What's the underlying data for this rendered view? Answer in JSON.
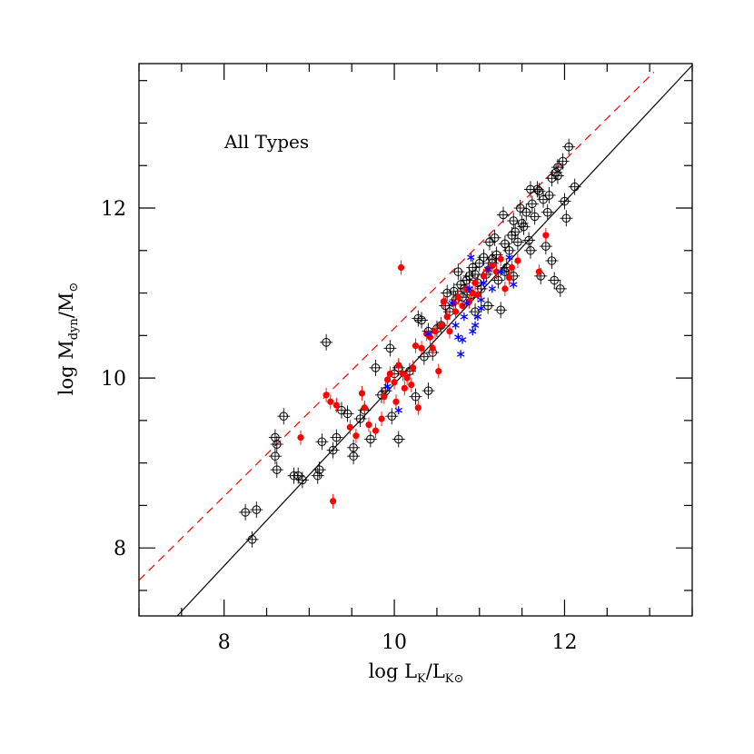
{
  "chart_data": {
    "type": "scatter",
    "title": "",
    "annotation": "All Types",
    "xlabel": {
      "main": "log L",
      "sub1": "K",
      "mid": "/L",
      "sub2": "K⊙"
    },
    "ylabel": {
      "main": "log M",
      "sub1": "dyn",
      "mid": "/M",
      "sub2": "⊙"
    },
    "xlim": [
      7.0,
      13.5
    ],
    "ylim": [
      7.2,
      13.7
    ],
    "x_ticks": [
      8,
      10,
      12
    ],
    "y_ticks": [
      8,
      10,
      12
    ],
    "grid": false,
    "colors": {
      "open": "#000000",
      "red": "#ff0000",
      "blue": "#0000ff",
      "fit_solid": "#000000",
      "fit_dashed": "#ff0000"
    },
    "lines": [
      {
        "name": "",
        "style": "solid",
        "color": "#000000",
        "x": [
          7.45,
          13.5
        ],
        "y": [
          7.2,
          13.68
        ]
      },
      {
        "name": "",
        "style": "dashed",
        "color": "#ff0000",
        "x": [
          7.0,
          13.05
        ],
        "y": [
          7.62,
          13.6
        ]
      }
    ],
    "series": [
      {
        "name": "",
        "marker": "open-circle-cross",
        "color": "#000000",
        "points": [
          [
            8.25,
            8.42
          ],
          [
            8.38,
            8.45
          ],
          [
            8.33,
            8.1
          ],
          [
            8.6,
            9.3
          ],
          [
            8.62,
            9.22
          ],
          [
            8.6,
            9.08
          ],
          [
            8.62,
            8.92
          ],
          [
            8.7,
            9.55
          ],
          [
            8.82,
            8.85
          ],
          [
            8.87,
            8.85
          ],
          [
            8.92,
            8.8
          ],
          [
            9.1,
            8.85
          ],
          [
            9.12,
            8.92
          ],
          [
            9.15,
            9.25
          ],
          [
            9.2,
            10.42
          ],
          [
            9.28,
            9.15
          ],
          [
            9.32,
            9.3
          ],
          [
            9.38,
            9.62
          ],
          [
            9.45,
            9.58
          ],
          [
            9.52,
            9.18
          ],
          [
            9.52,
            9.08
          ],
          [
            9.6,
            9.52
          ],
          [
            9.65,
            9.62
          ],
          [
            9.72,
            9.28
          ],
          [
            9.78,
            10.12
          ],
          [
            9.85,
            9.8
          ],
          [
            9.9,
            9.85
          ],
          [
            9.95,
            10.35
          ],
          [
            9.97,
            9.55
          ],
          [
            10.0,
            10.05
          ],
          [
            10.05,
            9.28
          ],
          [
            10.05,
            10.12
          ],
          [
            10.18,
            10.08
          ],
          [
            10.25,
            9.78
          ],
          [
            10.28,
            10.7
          ],
          [
            10.32,
            10.68
          ],
          [
            10.35,
            10.25
          ],
          [
            10.4,
            9.85
          ],
          [
            10.4,
            10.55
          ],
          [
            10.45,
            10.3
          ],
          [
            10.5,
            10.58
          ],
          [
            10.55,
            10.62
          ],
          [
            10.6,
            10.85
          ],
          [
            10.62,
            11.0
          ],
          [
            10.65,
            10.78
          ],
          [
            10.7,
            11.02
          ],
          [
            10.72,
            10.92
          ],
          [
            10.75,
            11.25
          ],
          [
            10.78,
            11.1
          ],
          [
            10.8,
            10.95
          ],
          [
            10.82,
            11.05
          ],
          [
            10.85,
            11.15
          ],
          [
            10.88,
            11.2
          ],
          [
            10.9,
            10.98
          ],
          [
            10.92,
            11.3
          ],
          [
            10.95,
            10.78
          ],
          [
            10.98,
            11.12
          ],
          [
            11.0,
            11.35
          ],
          [
            11.02,
            11.05
          ],
          [
            11.05,
            11.42
          ],
          [
            11.08,
            11.22
          ],
          [
            11.1,
            10.85
          ],
          [
            11.12,
            11.6
          ],
          [
            11.15,
            11.35
          ],
          [
            11.18,
            11.65
          ],
          [
            11.2,
            11.45
          ],
          [
            11.22,
            11.15
          ],
          [
            11.25,
            10.8
          ],
          [
            11.28,
            11.92
          ],
          [
            11.3,
            11.58
          ],
          [
            11.32,
            11.3
          ],
          [
            11.35,
            11.5
          ],
          [
            11.38,
            11.68
          ],
          [
            11.4,
            11.85
          ],
          [
            11.42,
            11.72
          ],
          [
            11.45,
            11.6
          ],
          [
            11.48,
            12.0
          ],
          [
            11.5,
            11.82
          ],
          [
            11.52,
            11.78
          ],
          [
            11.55,
            11.95
          ],
          [
            11.58,
            11.62
          ],
          [
            11.6,
            11.5
          ],
          [
            11.62,
            12.05
          ],
          [
            11.65,
            11.9
          ],
          [
            11.68,
            12.22
          ],
          [
            11.7,
            12.2
          ],
          [
            11.72,
            11.2
          ],
          [
            11.75,
            12.1
          ],
          [
            11.78,
            11.55
          ],
          [
            11.8,
            11.95
          ],
          [
            11.82,
            12.15
          ],
          [
            11.85,
            12.35
          ],
          [
            11.85,
            11.38
          ],
          [
            11.88,
            11.15
          ],
          [
            11.9,
            12.42
          ],
          [
            11.92,
            12.48
          ],
          [
            11.92,
            12.38
          ],
          [
            11.95,
            11.05
          ],
          [
            11.98,
            12.55
          ],
          [
            12.0,
            12.08
          ],
          [
            12.02,
            11.88
          ],
          [
            12.05,
            12.72
          ],
          [
            12.12,
            12.25
          ],
          [
            11.6,
            12.22
          ],
          [
            11.4,
            11.2
          ],
          [
            11.3,
            11.25
          ],
          [
            11.15,
            11.4
          ],
          [
            10.95,
            11.22
          ]
        ]
      },
      {
        "name": "",
        "marker": "filled-circle",
        "color": "#ff0000",
        "points": [
          [
            8.9,
            9.3
          ],
          [
            9.2,
            9.8
          ],
          [
            9.25,
            9.72
          ],
          [
            9.28,
            8.55
          ],
          [
            9.32,
            9.68
          ],
          [
            9.48,
            9.42
          ],
          [
            9.55,
            9.32
          ],
          [
            9.62,
            9.82
          ],
          [
            9.65,
            9.65
          ],
          [
            9.7,
            9.45
          ],
          [
            9.78,
            9.38
          ],
          [
            9.85,
            9.52
          ],
          [
            9.88,
            9.78
          ],
          [
            9.92,
            9.98
          ],
          [
            9.95,
            10.05
          ],
          [
            10.0,
            9.95
          ],
          [
            10.02,
            9.72
          ],
          [
            10.05,
            10.15
          ],
          [
            10.08,
            11.3
          ],
          [
            10.1,
            10.05
          ],
          [
            10.12,
            9.88
          ],
          [
            10.15,
            10.0
          ],
          [
            10.2,
            9.92
          ],
          [
            10.22,
            10.12
          ],
          [
            10.25,
            10.38
          ],
          [
            10.28,
            9.65
          ],
          [
            10.32,
            10.35
          ],
          [
            10.38,
            10.52
          ],
          [
            10.42,
            10.48
          ],
          [
            10.45,
            10.35
          ],
          [
            10.48,
            10.55
          ],
          [
            10.52,
            10.08
          ],
          [
            10.55,
            10.62
          ],
          [
            10.58,
            10.9
          ],
          [
            10.62,
            10.72
          ],
          [
            10.65,
            10.55
          ],
          [
            10.7,
            10.88
          ],
          [
            10.72,
            10.78
          ],
          [
            10.75,
            10.95
          ],
          [
            10.8,
            10.85
          ],
          [
            10.85,
            11.05
          ],
          [
            10.88,
            10.9
          ],
          [
            10.92,
            11.0
          ],
          [
            10.95,
            11.12
          ],
          [
            10.98,
            10.98
          ],
          [
            11.05,
            11.2
          ],
          [
            11.1,
            11.28
          ],
          [
            11.15,
            11.32
          ],
          [
            11.2,
            11.25
          ],
          [
            11.25,
            11.4
          ],
          [
            11.3,
            11.05
          ],
          [
            11.35,
            11.18
          ],
          [
            11.38,
            11.3
          ],
          [
            11.45,
            11.38
          ],
          [
            11.78,
            11.68
          ],
          [
            11.7,
            11.25
          ]
        ]
      },
      {
        "name": "",
        "marker": "asterisk",
        "color": "#0000ff",
        "points": [
          [
            9.92,
            9.9
          ],
          [
            10.05,
            9.62
          ],
          [
            10.4,
            10.52
          ],
          [
            10.68,
            10.88
          ],
          [
            10.72,
            10.62
          ],
          [
            10.75,
            10.48
          ],
          [
            10.78,
            10.28
          ],
          [
            10.8,
            10.45
          ],
          [
            10.82,
            10.72
          ],
          [
            10.85,
            10.88
          ],
          [
            10.88,
            11.05
          ],
          [
            10.9,
            11.42
          ],
          [
            10.92,
            10.55
          ],
          [
            10.95,
            10.62
          ],
          [
            10.98,
            10.72
          ],
          [
            11.02,
            10.92
          ],
          [
            11.05,
            11.12
          ],
          [
            11.1,
            11.28
          ],
          [
            11.15,
            11.05
          ],
          [
            11.25,
            11.25
          ],
          [
            11.35,
            11.42
          ],
          [
            11.4,
            11.1
          ],
          [
            11.02,
            10.82
          ]
        ]
      }
    ]
  }
}
